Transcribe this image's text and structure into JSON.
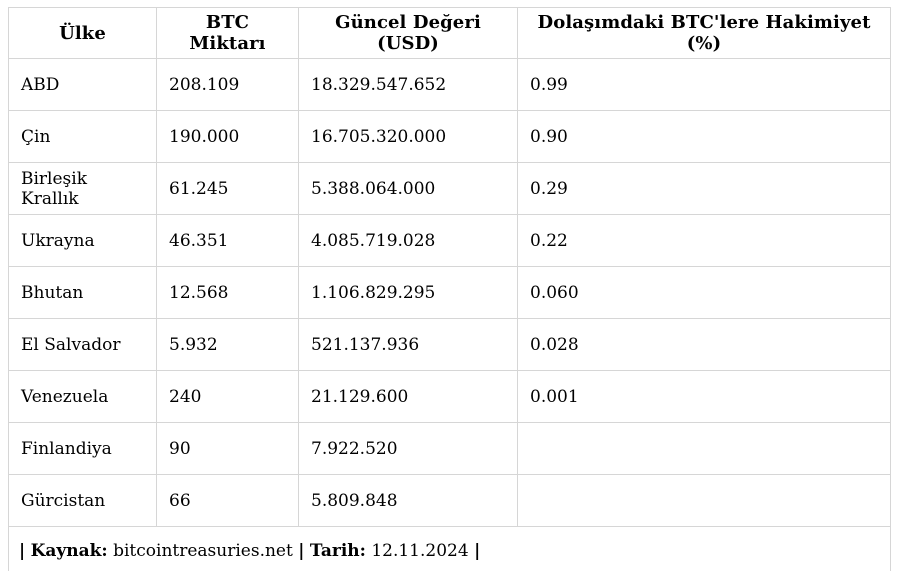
{
  "chart_data": {
    "type": "table",
    "columns": [
      "Ülke",
      "BTC Miktarı",
      "Güncel Değeri (USD)",
      "Dolaşımdaki BTC'lere Hakimiyet (%)"
    ],
    "rows": [
      [
        "ABD",
        "208.109",
        "18.329.547.652",
        "0.99"
      ],
      [
        "Çin",
        "190.000",
        "16.705.320.000",
        "0.90"
      ],
      [
        "Birleşik Krallık",
        "61.245",
        "5.388.064.000",
        "0.29"
      ],
      [
        "Ukrayna",
        "46.351",
        "4.085.719.028",
        "0.22"
      ],
      [
        "Bhutan",
        "12.568",
        "1.106.829.295",
        "0.060"
      ],
      [
        "El Salvador",
        "5.932",
        "521.137.936",
        "0.028"
      ],
      [
        "Venezuela",
        "240",
        "21.129.600",
        "0.001"
      ],
      [
        "Finlandiya",
        "90",
        "7.922.520",
        ""
      ],
      [
        "Gürcistan",
        "66",
        "5.809.848",
        ""
      ]
    ],
    "source": "bitcointreasuries.net",
    "date": "12.11.2024"
  },
  "footer": {
    "pipe": "|",
    "source_label": "Kaynak:",
    "source_value": "bitcointreasuries.net",
    "date_label": "Tarih:",
    "date_value": "12.11.2024"
  },
  "colors": {
    "border": "#d6d6d6",
    "text": "#000000",
    "background": "#ffffff"
  }
}
